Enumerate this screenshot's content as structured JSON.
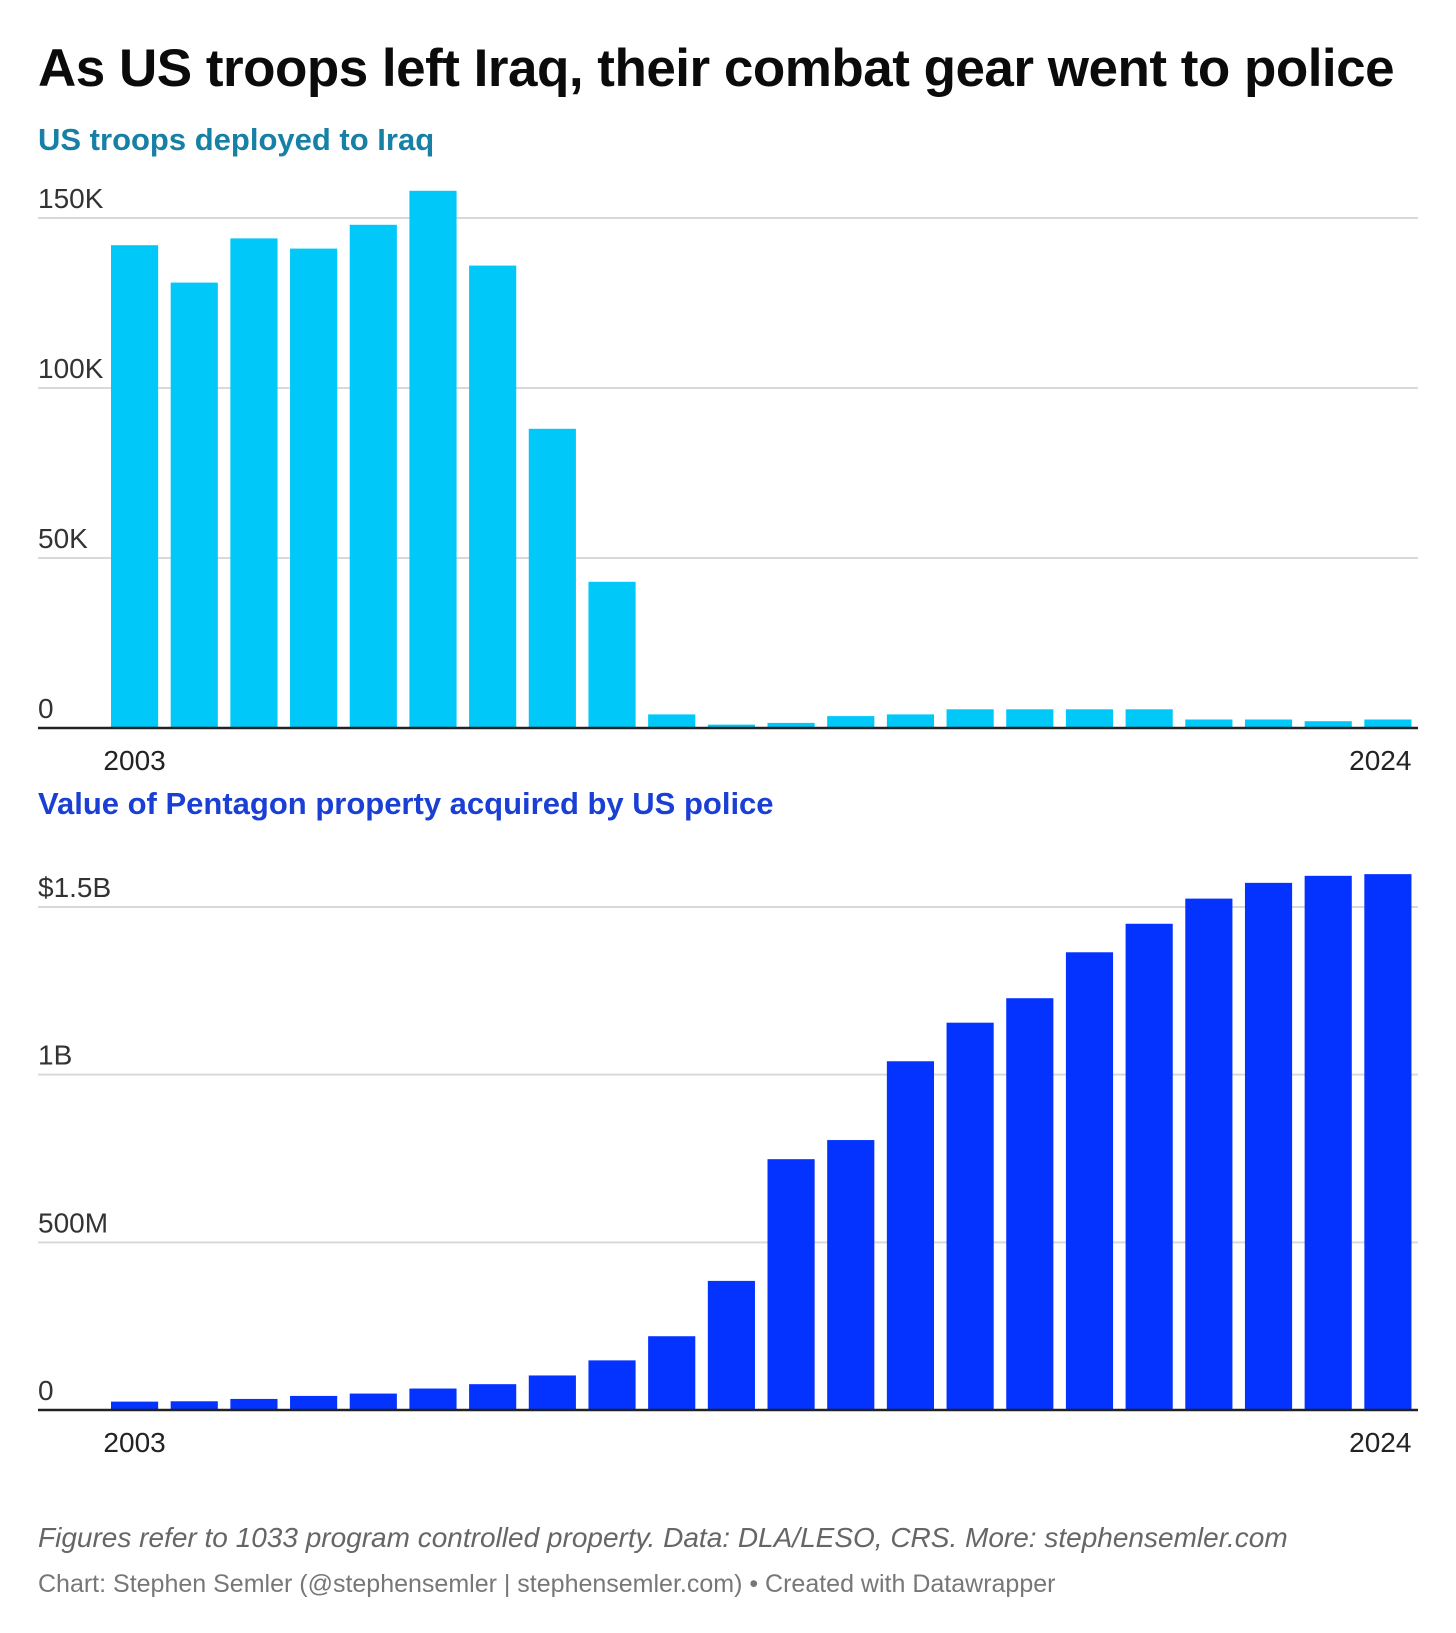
{
  "title": "As US troops left Iraq, their combat gear went to police",
  "colors": {
    "troops": "#00c8f8",
    "property": "#0433ff",
    "troops_title": "#1680a6",
    "property_title": "#1a3fd4",
    "grid": "#d9d9d9",
    "axis": "#222222"
  },
  "chart_data": [
    {
      "type": "bar",
      "title": "US troops deployed to Iraq",
      "x": [
        2003,
        2004,
        2005,
        2006,
        2007,
        2008,
        2009,
        2010,
        2011,
        2012,
        2013,
        2014,
        2015,
        2016,
        2017,
        2018,
        2019,
        2020,
        2021,
        2022,
        2023,
        2024
      ],
      "values": [
        142000,
        131000,
        144000,
        141000,
        148000,
        158000,
        136000,
        88000,
        43000,
        4000,
        1000,
        1500,
        3500,
        4000,
        5500,
        5500,
        5500,
        5500,
        2500,
        2500,
        2000,
        2500
      ],
      "ylim": [
        0,
        150000
      ],
      "yticks": [
        0,
        50000,
        100000,
        150000
      ],
      "ytick_labels": [
        "0",
        "50K",
        "100K",
        "150K"
      ],
      "x_labels": [
        "2003",
        "2024"
      ],
      "xlabel": "",
      "ylabel": "",
      "grid": true
    },
    {
      "type": "bar",
      "title": "Value of Pentagon property acquired by US police",
      "x": [
        2003,
        2004,
        2005,
        2006,
        2007,
        2008,
        2009,
        2010,
        2011,
        2012,
        2013,
        2014,
        2015,
        2016,
        2017,
        2018,
        2019,
        2020,
        2021,
        2022,
        2023,
        2024
      ],
      "values": [
        25000000,
        26000000,
        33000000,
        42000000,
        49000000,
        64000000,
        77000000,
        103000000,
        148000000,
        220000000,
        385000000,
        748000000,
        805000000,
        1040000000,
        1155000000,
        1228000000,
        1365000000,
        1450000000,
        1525000000,
        1572000000,
        1593000000,
        1598000000
      ],
      "ylim": [
        0,
        1500000000
      ],
      "yticks": [
        0,
        500000000,
        1000000000,
        1500000000
      ],
      "ytick_labels": [
        "0",
        "500M",
        "1B",
        "$1.5B"
      ],
      "x_labels": [
        "2003",
        "2024"
      ],
      "xlabel": "",
      "ylabel": "",
      "grid": true
    }
  ],
  "notes": "Figures refer to 1033 program controlled property. Data: DLA/LESO, CRS. More: stephensemler.com",
  "credit": "Chart: Stephen Semler (@stephensemler | stephensemler.com) • Created with Datawrapper"
}
